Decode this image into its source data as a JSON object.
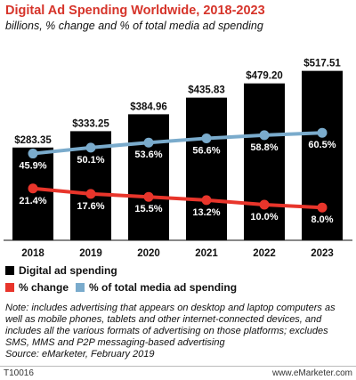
{
  "title": "Digital Ad Spending Worldwide, 2018-2023",
  "subtitle": "billions, % change and % of total media ad spending",
  "legend": {
    "spending": "Digital ad spending",
    "change": "% change",
    "share": "% of total media ad spending"
  },
  "colors": {
    "title": "#d6342a",
    "bar": "#000000",
    "change_line": "#e8352b",
    "share_line": "#7aabcc"
  },
  "note": "Note: includes advertising that appears on desktop and laptop computers as well as mobile phones, tablets and other internet-connected devices, and includes all the various formats of advertising on those platforms; excludes SMS, MMS and P2P messaging-based advertising",
  "source": "Source: eMarketer, February 2019",
  "footer": {
    "id": "T10016",
    "site": "www.eMarketer.com"
  },
  "chart_data": {
    "type": "bar",
    "categories": [
      "2018",
      "2019",
      "2020",
      "2021",
      "2022",
      "2023"
    ],
    "series": [
      {
        "name": "Digital ad spending",
        "type": "bar",
        "values": [
          283.35,
          333.25,
          384.96,
          435.83,
          479.2,
          517.51
        ],
        "labels": [
          "$283.35",
          "$333.25",
          "$384.96",
          "$435.83",
          "$479.20",
          "$517.51"
        ]
      },
      {
        "name": "% change",
        "type": "line",
        "values": [
          21.4,
          17.6,
          15.5,
          13.2,
          10.0,
          8.0
        ],
        "labels": [
          "21.4%",
          "17.6%",
          "15.5%",
          "13.2%",
          "10.0%",
          "8.0%"
        ]
      },
      {
        "name": "% of total media ad spending",
        "type": "line",
        "values": [
          45.9,
          50.1,
          53.6,
          56.6,
          58.8,
          60.5
        ],
        "labels": [
          "45.9%",
          "50.1%",
          "53.6%",
          "56.6%",
          "58.8%",
          "60.5%"
        ]
      }
    ],
    "grid": false
  }
}
